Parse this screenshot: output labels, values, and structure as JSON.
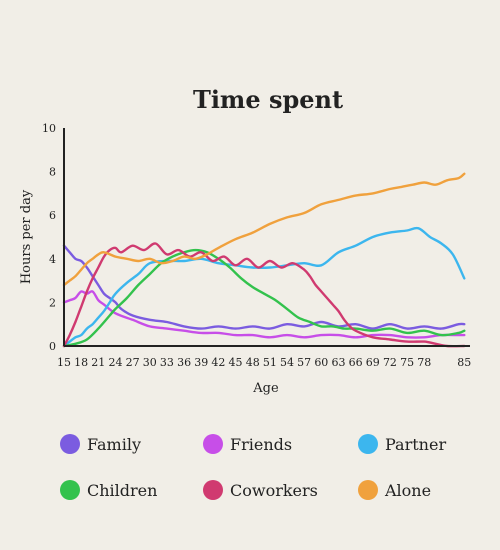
{
  "chart_data": {
    "type": "line",
    "title": "Time spent",
    "xlabel": "Age",
    "ylabel": "Hours per day",
    "xlim": [
      15,
      86
    ],
    "ylim": [
      0,
      10
    ],
    "x_ticks": [
      15,
      18,
      21,
      24,
      27,
      30,
      33,
      36,
      39,
      42,
      45,
      48,
      51,
      54,
      57,
      60,
      63,
      66,
      69,
      72,
      75,
      78,
      85
    ],
    "y_ticks": [
      0,
      2,
      4,
      6,
      8,
      10
    ],
    "grid": false,
    "legend_position": "bottom",
    "series": [
      {
        "name": "Family",
        "color": "#7b5ce0",
        "x": [
          15,
          16,
          17,
          18,
          19,
          20,
          21,
          22,
          23,
          24,
          25,
          27,
          30,
          33,
          36,
          39,
          42,
          45,
          48,
          51,
          54,
          57,
          60,
          63,
          66,
          69,
          72,
          75,
          78,
          81,
          84,
          85
        ],
        "y": [
          4.6,
          4.3,
          4.0,
          3.9,
          3.6,
          3.2,
          2.8,
          2.4,
          2.2,
          2.0,
          1.7,
          1.4,
          1.2,
          1.1,
          0.9,
          0.8,
          0.9,
          0.8,
          0.9,
          0.8,
          1.0,
          0.9,
          1.1,
          0.9,
          1.0,
          0.8,
          1.0,
          0.8,
          0.9,
          0.8,
          1.0,
          1.0
        ]
      },
      {
        "name": "Friends",
        "color": "#c74ee8",
        "x": [
          15,
          16,
          17,
          18,
          19,
          20,
          21,
          22,
          24,
          27,
          30,
          33,
          36,
          39,
          42,
          45,
          48,
          51,
          54,
          57,
          60,
          63,
          66,
          69,
          72,
          75,
          78,
          81,
          84,
          85
        ],
        "y": [
          2.0,
          2.1,
          2.2,
          2.5,
          2.4,
          2.5,
          2.1,
          1.9,
          1.5,
          1.2,
          0.9,
          0.8,
          0.7,
          0.6,
          0.6,
          0.5,
          0.5,
          0.4,
          0.5,
          0.4,
          0.5,
          0.5,
          0.4,
          0.5,
          0.5,
          0.4,
          0.4,
          0.5,
          0.5,
          0.5
        ]
      },
      {
        "name": "Partner",
        "color": "#3cb6ee",
        "x": [
          15,
          16,
          17,
          18,
          19,
          20,
          21,
          22,
          23,
          24,
          26,
          28,
          30,
          33,
          36,
          39,
          42,
          45,
          48,
          51,
          54,
          57,
          60,
          63,
          66,
          69,
          72,
          75,
          77,
          79,
          81,
          83,
          85
        ],
        "y": [
          0.0,
          0.2,
          0.4,
          0.5,
          0.8,
          1.0,
          1.3,
          1.6,
          2.0,
          2.4,
          2.9,
          3.3,
          3.8,
          3.9,
          3.9,
          4.0,
          3.8,
          3.7,
          3.6,
          3.6,
          3.7,
          3.8,
          3.7,
          4.3,
          4.6,
          5.0,
          5.2,
          5.3,
          5.4,
          5.0,
          4.7,
          4.2,
          3.1
        ]
      },
      {
        "name": "Children",
        "color": "#33c24d",
        "x": [
          15,
          17,
          19,
          21,
          23,
          24,
          26,
          28,
          30,
          32,
          34,
          36,
          38,
          40,
          42,
          44,
          46,
          48,
          50,
          52,
          54,
          56,
          58,
          60,
          62,
          64,
          66,
          69,
          72,
          75,
          78,
          81,
          84,
          85
        ],
        "y": [
          0.0,
          0.1,
          0.3,
          0.8,
          1.4,
          1.7,
          2.2,
          2.8,
          3.3,
          3.8,
          4.1,
          4.3,
          4.4,
          4.3,
          4.0,
          3.6,
          3.1,
          2.7,
          2.4,
          2.1,
          1.7,
          1.3,
          1.1,
          0.9,
          0.9,
          0.8,
          0.8,
          0.7,
          0.8,
          0.6,
          0.7,
          0.5,
          0.6,
          0.7
        ]
      },
      {
        "name": "Coworkers",
        "color": "#d03a70",
        "x": [
          15,
          16,
          17,
          18,
          19,
          20,
          21,
          22,
          23,
          24,
          25,
          27,
          29,
          31,
          33,
          35,
          37,
          39,
          41,
          43,
          45,
          47,
          49,
          51,
          53,
          55,
          57,
          58,
          59,
          60,
          61,
          62,
          63,
          64,
          65,
          66,
          69,
          72,
          75,
          78,
          80,
          82,
          85
        ],
        "y": [
          0.0,
          0.5,
          1.1,
          1.8,
          2.5,
          3.1,
          3.6,
          4.1,
          4.4,
          4.5,
          4.3,
          4.6,
          4.4,
          4.7,
          4.2,
          4.4,
          4.1,
          4.3,
          3.9,
          4.1,
          3.7,
          4.0,
          3.6,
          3.9,
          3.6,
          3.8,
          3.5,
          3.2,
          2.8,
          2.5,
          2.2,
          1.9,
          1.6,
          1.2,
          0.9,
          0.7,
          0.4,
          0.3,
          0.2,
          0.2,
          0.1,
          0.0,
          0.0
        ]
      },
      {
        "name": "Alone",
        "color": "#f0a13d",
        "x": [
          15,
          16,
          17,
          18,
          19,
          20,
          21,
          22,
          24,
          26,
          28,
          30,
          32,
          34,
          36,
          38,
          40,
          42,
          45,
          48,
          51,
          54,
          57,
          60,
          63,
          66,
          69,
          72,
          74,
          76,
          78,
          80,
          82,
          84,
          85
        ],
        "y": [
          2.8,
          3.0,
          3.2,
          3.5,
          3.8,
          4.0,
          4.2,
          4.3,
          4.1,
          4.0,
          3.9,
          4.0,
          3.8,
          3.9,
          4.1,
          4.0,
          4.2,
          4.5,
          4.9,
          5.2,
          5.6,
          5.9,
          6.1,
          6.5,
          6.7,
          6.9,
          7.0,
          7.2,
          7.3,
          7.4,
          7.5,
          7.4,
          7.6,
          7.7,
          7.9
        ]
      }
    ]
  }
}
